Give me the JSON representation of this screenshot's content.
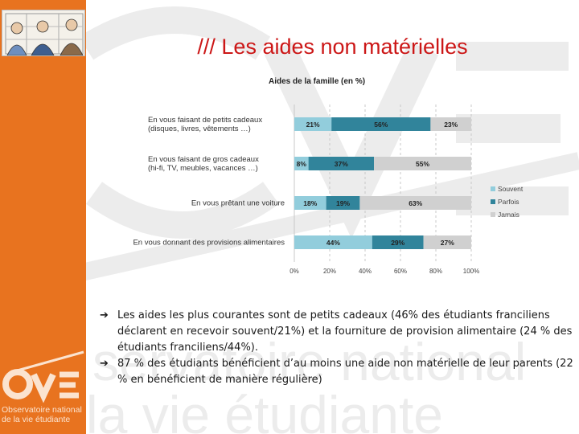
{
  "slide": {
    "title": "/// Les aides non matérielles",
    "logo": {
      "letters": "OVE",
      "line1": "Observatoire national",
      "line2": "de la vie étudiante"
    },
    "watermark": {
      "line1": "servatoire national",
      "line2": "la vie étudiante"
    },
    "bullets": [
      {
        "arrow": "➔",
        "text": "Les aides les plus courantes sont de petits cadeaux (46% des étudiants franciliens déclarent en recevoir souvent/21%) et la fourniture de provision alimentaire (24 % des étudiants franciliens/44%)."
      },
      {
        "arrow": "➔",
        "text": "87 % des étudiants bénéficient d’au moins une aide non matérielle de leur parents (22 % en bénéficient de manière régulière)"
      }
    ]
  },
  "colors": {
    "orange": "#e8731f",
    "title_red": "#cc1717",
    "souvent": "#92cddc",
    "parfois": "#31849b",
    "jamais": "#d0d0d0"
  },
  "chart_data": {
    "type": "bar",
    "orientation": "horizontal",
    "stacked": true,
    "title": "Aides de la famille (en %)",
    "categories": [
      [
        "En vous faisant de petits cadeaux",
        "(disques, livres, vêtements …)"
      ],
      [
        "En vous faisant de gros cadeaux",
        "(hi-fi, TV, meubles, vacances …)"
      ],
      [
        "En vous prêtant une voiture"
      ],
      [
        "En vous donnant des provisions alimentaires"
      ]
    ],
    "series": [
      {
        "name": "Souvent",
        "values": [
          21,
          8,
          18,
          44
        ],
        "labels": [
          "21%",
          "8%",
          "18%",
          "44%"
        ]
      },
      {
        "name": "Parfois",
        "values": [
          56,
          37,
          19,
          29
        ],
        "labels": [
          "56%",
          "37%",
          "19%",
          "29%"
        ]
      },
      {
        "name": "Jamais",
        "values": [
          23,
          55,
          63,
          27
        ],
        "labels": [
          "23%",
          "55%",
          "63%",
          "27%"
        ]
      }
    ],
    "xlim": [
      0,
      100
    ],
    "ticks": [
      "0%",
      "20%",
      "40%",
      "60%",
      "80%",
      "100%"
    ],
    "tick_values": [
      0,
      20,
      40,
      60,
      80,
      100
    ],
    "grid": true,
    "legend_position": "right"
  }
}
